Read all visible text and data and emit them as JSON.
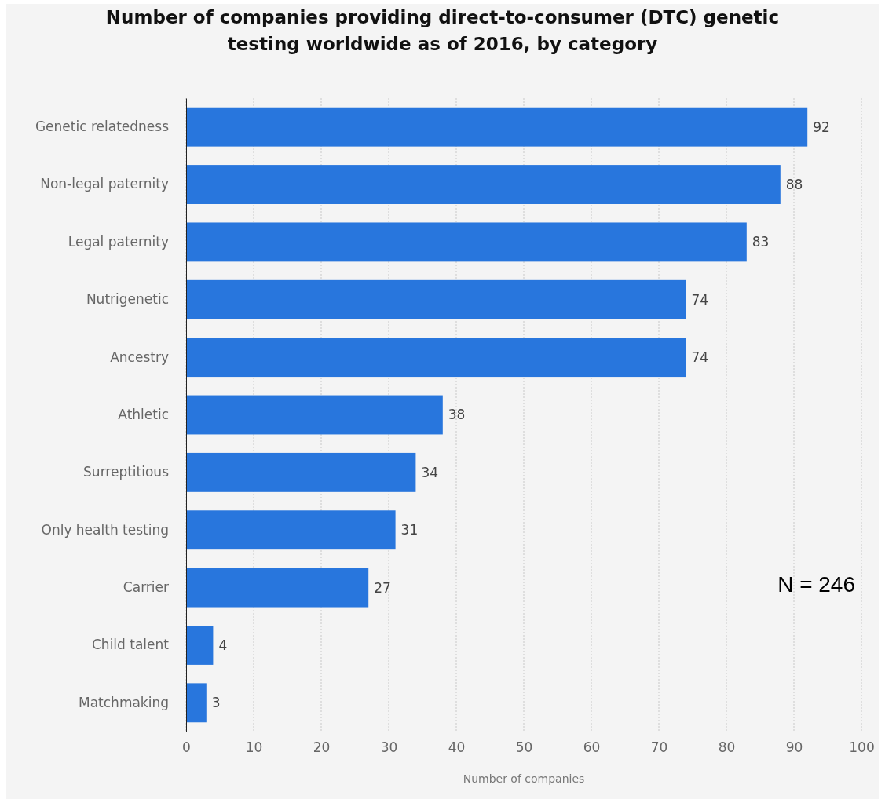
{
  "chart_data": {
    "type": "bar",
    "orientation": "horizontal",
    "title": "Number of companies providing direct-to-consumer (DTC) genetic testing worldwide as of 2016, by category",
    "xlabel": "Number of companies",
    "categories": [
      "Genetic relatedness",
      "Non-legal paternity",
      "Legal paternity",
      "Nutrigenetic",
      "Ancestry",
      "Athletic",
      "Surreptitious",
      "Only health testing",
      "Carrier",
      "Child talent",
      "Matchmaking"
    ],
    "values": [
      92,
      88,
      83,
      74,
      74,
      38,
      34,
      31,
      27,
      4,
      3
    ],
    "color": "#2876dd",
    "xlim": [
      0,
      100
    ],
    "xticks": [
      0,
      10,
      20,
      30,
      40,
      50,
      60,
      70,
      80,
      90,
      100
    ],
    "grid": "x",
    "data_labels": true,
    "annotations": [
      "N = 246"
    ]
  }
}
